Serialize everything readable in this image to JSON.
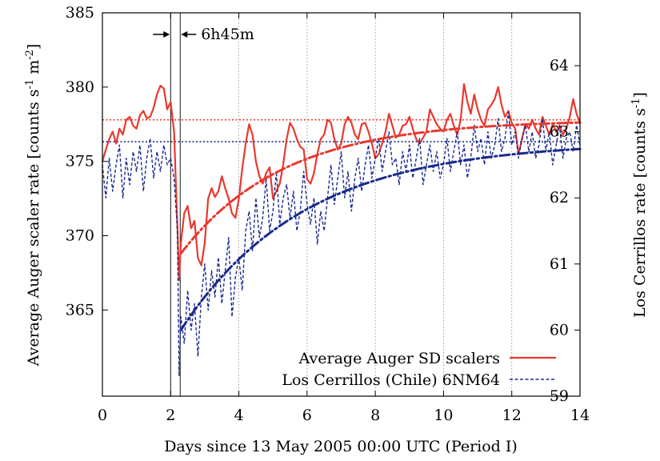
{
  "chart_data": {
    "type": "line",
    "xlabel": "Days since 13 May 2005 00:00 UTC (Period I)",
    "ylabel_left": "Average Auger scaler rate [counts s",
    "ylabel_left_sup1": "-1",
    "ylabel_left_mid": " m",
    "ylabel_left_sup2": "-2",
    "ylabel_left_end": "]",
    "ylabel_right": "Los Cerrillos rate [counts s",
    "ylabel_right_sup": "-1",
    "ylabel_right_end": "]",
    "xlim": [
      0,
      14
    ],
    "ylim_left": [
      359.2,
      385
    ],
    "ylim_right": [
      59,
      64.8
    ],
    "x_ticks": [
      "0",
      "2",
      "4",
      "6",
      "8",
      "10",
      "12",
      "14"
    ],
    "y_left_ticks": [
      "385",
      "380",
      "375",
      "370",
      "365"
    ],
    "y_right_ticks": [
      "64",
      "63",
      "62",
      "61",
      "60",
      "59"
    ],
    "grid": "vertical dotted lines at even days",
    "legend_position": "bottom-right",
    "annotation": {
      "text": "6h45m",
      "x_start": 2.0,
      "x_end": 2.28
    },
    "colors": {
      "auger": "#e8392f",
      "neutron": "#1a2a8c",
      "grid": "#8a8a8a"
    },
    "series": [
      {
        "name": "Average Auger SD scalers",
        "axis": "left",
        "style": "solid",
        "x": [
          0,
          0.1,
          0.2,
          0.3,
          0.4,
          0.5,
          0.6,
          0.7,
          0.8,
          0.9,
          1.0,
          1.1,
          1.2,
          1.3,
          1.4,
          1.5,
          1.6,
          1.7,
          1.8,
          1.9,
          2.0,
          2.1,
          2.2,
          2.25,
          2.3,
          2.4,
          2.5,
          2.6,
          2.7,
          2.8,
          2.9,
          3.0,
          3.1,
          3.2,
          3.3,
          3.4,
          3.5,
          3.6,
          3.7,
          3.8,
          3.9,
          4.0,
          4.1,
          4.2,
          4.3,
          4.4,
          4.5,
          4.6,
          4.7,
          4.8,
          4.9,
          5.0,
          5.1,
          5.2,
          5.3,
          5.4,
          5.5,
          5.6,
          5.7,
          5.8,
          5.9,
          6.0,
          6.1,
          6.2,
          6.3,
          6.4,
          6.5,
          6.6,
          6.7,
          6.8,
          6.9,
          7.0,
          7.1,
          7.2,
          7.3,
          7.4,
          7.5,
          7.6,
          7.7,
          7.8,
          7.9,
          8.0,
          8.1,
          8.2,
          8.3,
          8.4,
          8.5,
          8.6,
          8.7,
          8.8,
          8.9,
          9.0,
          9.1,
          9.2,
          9.3,
          9.4,
          9.5,
          9.6,
          9.7,
          9.8,
          9.9,
          10.0,
          10.1,
          10.2,
          10.3,
          10.4,
          10.5,
          10.6,
          10.7,
          10.8,
          10.9,
          11.0,
          11.1,
          11.2,
          11.3,
          11.4,
          11.5,
          11.6,
          11.7,
          11.8,
          11.9,
          12.0,
          12.1,
          12.2,
          12.3,
          12.4,
          12.5,
          12.6,
          12.7,
          12.8,
          12.9,
          13.0,
          13.1,
          13.2,
          13.3,
          13.4,
          13.5,
          13.6,
          13.7,
          13.8,
          13.9,
          14.0
        ],
        "values": [
          375.0,
          375.8,
          376.5,
          377.0,
          376.2,
          377.2,
          376.8,
          377.8,
          378.0,
          377.4,
          377.2,
          378.1,
          378.4,
          377.9,
          378.0,
          378.6,
          379.5,
          380.1,
          379.9,
          378.5,
          379.0,
          377.0,
          370.5,
          367.0,
          369.5,
          371.5,
          372.0,
          370.5,
          371.0,
          368.5,
          368.0,
          369.5,
          372.5,
          373.2,
          372.6,
          373.0,
          374.0,
          373.2,
          372.5,
          371.5,
          371.2,
          372.5,
          374.5,
          376.2,
          377.5,
          376.8,
          375.0,
          374.0,
          373.5,
          374.2,
          374.6,
          372.5,
          373.0,
          373.5,
          374.8,
          376.5,
          377.6,
          377.2,
          376.5,
          376.0,
          375.8,
          373.8,
          373.5,
          374.2,
          375.5,
          376.5,
          376.8,
          377.8,
          377.6,
          376.5,
          375.8,
          376.2,
          377.5,
          378.0,
          377.6,
          376.8,
          376.5,
          377.5,
          377.6,
          377.0,
          376.2,
          375.2,
          375.5,
          376.2,
          377.0,
          378.2,
          377.4,
          376.6,
          376.8,
          377.4,
          377.5,
          378.0,
          377.2,
          376.5,
          376.2,
          376.6,
          377.0,
          378.5,
          378.0,
          377.5,
          377.2,
          377.0,
          377.8,
          378.2,
          377.4,
          376.8,
          377.8,
          380.2,
          379.0,
          378.2,
          379.5,
          378.5,
          377.8,
          377.4,
          378.5,
          378.8,
          379.2,
          380.0,
          378.8,
          378.0,
          378.4,
          377.6,
          377.2,
          375.5,
          376.5,
          377.5,
          377.2,
          377.8,
          377.2,
          376.8,
          378.0,
          377.4,
          376.8,
          377.5,
          377.0,
          377.4,
          376.8,
          377.2,
          378.0,
          379.2,
          378.2,
          377.6
        ]
      },
      {
        "name": "Los Cerrillos (Chile) 6NM64",
        "axis": "right",
        "style": "dashed",
        "x": [
          0,
          0.1,
          0.2,
          0.3,
          0.4,
          0.5,
          0.6,
          0.7,
          0.8,
          0.9,
          1.0,
          1.1,
          1.2,
          1.3,
          1.4,
          1.5,
          1.6,
          1.7,
          1.8,
          1.9,
          2.0,
          2.1,
          2.2,
          2.25,
          2.3,
          2.4,
          2.5,
          2.6,
          2.7,
          2.8,
          2.9,
          3.0,
          3.1,
          3.2,
          3.3,
          3.4,
          3.5,
          3.6,
          3.7,
          3.8,
          3.9,
          4.0,
          4.1,
          4.2,
          4.3,
          4.4,
          4.5,
          4.6,
          4.7,
          4.8,
          4.9,
          5.0,
          5.1,
          5.2,
          5.3,
          5.4,
          5.5,
          5.6,
          5.7,
          5.8,
          5.9,
          6.0,
          6.1,
          6.2,
          6.3,
          6.4,
          6.5,
          6.6,
          6.7,
          6.8,
          6.9,
          7.0,
          7.1,
          7.2,
          7.3,
          7.4,
          7.5,
          7.6,
          7.7,
          7.8,
          7.9,
          8.0,
          8.1,
          8.2,
          8.3,
          8.4,
          8.5,
          8.6,
          8.7,
          8.8,
          8.9,
          9.0,
          9.1,
          9.2,
          9.3,
          9.4,
          9.5,
          9.6,
          9.7,
          9.8,
          9.9,
          10.0,
          10.1,
          10.2,
          10.3,
          10.4,
          10.5,
          10.6,
          10.7,
          10.8,
          10.9,
          11.0,
          11.1,
          11.2,
          11.3,
          11.4,
          11.5,
          11.6,
          11.7,
          11.8,
          11.9,
          12.0,
          12.1,
          12.2,
          12.3,
          12.4,
          12.5,
          12.6,
          12.7,
          12.8,
          12.9,
          13.0,
          13.1,
          13.2,
          13.3,
          13.4,
          13.5,
          13.6,
          13.7,
          13.8,
          13.9,
          14.0
        ],
        "values": [
          62.5,
          62.0,
          62.6,
          62.1,
          62.5,
          62.8,
          62.0,
          62.6,
          62.2,
          62.7,
          62.4,
          62.8,
          62.1,
          62.6,
          62.9,
          62.3,
          62.7,
          62.4,
          62.8,
          62.5,
          62.6,
          62.3,
          61.5,
          59.3,
          60.2,
          59.8,
          60.6,
          60.0,
          60.4,
          59.6,
          60.5,
          61.0,
          60.3,
          60.9,
          60.5,
          61.1,
          60.4,
          60.9,
          61.4,
          60.2,
          60.8,
          61.1,
          60.6,
          61.5,
          61.8,
          61.2,
          62.0,
          61.4,
          61.7,
          62.3,
          61.5,
          61.8,
          62.4,
          61.6,
          62.0,
          62.2,
          61.7,
          62.1,
          61.5,
          61.8,
          62.4,
          61.9,
          61.6,
          62.0,
          61.3,
          61.8,
          61.5,
          62.0,
          62.5,
          61.9,
          62.3,
          62.7,
          62.0,
          62.4,
          61.8,
          62.3,
          62.6,
          62.1,
          62.5,
          62.8,
          62.3,
          62.6,
          62.9,
          62.4,
          62.7,
          63.0,
          62.5,
          62.6,
          62.2,
          62.7,
          62.4,
          62.8,
          62.3,
          62.6,
          62.9,
          62.2,
          62.5,
          62.8,
          62.4,
          62.7,
          62.3,
          62.5,
          62.9,
          62.4,
          62.7,
          63.0,
          62.5,
          62.8,
          62.3,
          62.6,
          63.1,
          62.7,
          62.9,
          62.5,
          63.0,
          62.6,
          62.8,
          63.2,
          62.7,
          62.9,
          63.3,
          62.8,
          63.0,
          62.6,
          62.9,
          63.1,
          62.7,
          63.0,
          62.6,
          62.8,
          63.2,
          62.7,
          63.0,
          62.5,
          62.8,
          63.1,
          62.6,
          62.9,
          63.0,
          62.7,
          63.1,
          62.8
        ]
      }
    ],
    "reference_levels": [
      {
        "axis": "left",
        "value": 377.8,
        "style": "dotted",
        "color_key": "auger"
      },
      {
        "axis": "right",
        "value": 62.85,
        "style": "dotted",
        "color_key": "neutron"
      }
    ],
    "recovery_fits": [
      {
        "axis": "left",
        "style": "dash-dot",
        "color_key": "auger",
        "x_start": 2.3,
        "x_end": 14,
        "start_value": 368.8,
        "end_value": 377.8,
        "tau_days": 3.0
      },
      {
        "axis": "right",
        "style": "dash-dot",
        "color_key": "neutron",
        "x_start": 2.3,
        "x_end": 14,
        "start_value": 60.0,
        "end_value": 62.85,
        "tau_days": 3.6
      }
    ],
    "event_markers": [
      2.0,
      2.28
    ]
  }
}
